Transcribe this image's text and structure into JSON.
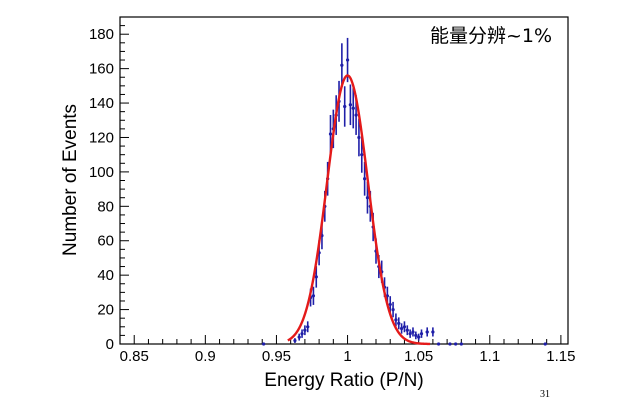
{
  "chart_data": {
    "type": "scatter",
    "title": "",
    "xlabel": "Energy Ratio (P/N)",
    "ylabel": "Number of Events",
    "xlim": [
      0.84,
      1.155
    ],
    "ylim": [
      0,
      190
    ],
    "x_ticks": [
      0.85,
      0.9,
      0.95,
      1,
      1.05,
      1.1,
      1.15
    ],
    "x_tick_labels": [
      "0.85",
      "0.9",
      "0.95",
      "1",
      "1.05",
      "1.1",
      "1.15"
    ],
    "y_ticks": [
      0,
      20,
      40,
      60,
      80,
      100,
      120,
      140,
      160,
      180
    ],
    "y_tick_labels": [
      "0",
      "20",
      "40",
      "60",
      "80",
      "100",
      "120",
      "140",
      "160",
      "180"
    ],
    "grid": false,
    "annotation": "能量分辨~1%",
    "series": [
      {
        "kind": "histogram-with-errors",
        "color": "#1f1fa8",
        "points": [
          {
            "x": 0.941,
            "y": 0
          },
          {
            "x": 0.963,
            "y": 2
          },
          {
            "x": 0.966,
            "y": 4
          },
          {
            "x": 0.968,
            "y": 6
          },
          {
            "x": 0.97,
            "y": 8
          },
          {
            "x": 0.972,
            "y": 10
          },
          {
            "x": 0.974,
            "y": 27
          },
          {
            "x": 0.976,
            "y": 28
          },
          {
            "x": 0.978,
            "y": 39
          },
          {
            "x": 0.98,
            "y": 53
          },
          {
            "x": 0.982,
            "y": 63
          },
          {
            "x": 0.984,
            "y": 80
          },
          {
            "x": 0.986,
            "y": 96
          },
          {
            "x": 0.988,
            "y": 122
          },
          {
            "x": 0.99,
            "y": 125
          },
          {
            "x": 0.992,
            "y": 133
          },
          {
            "x": 0.994,
            "y": 141
          },
          {
            "x": 0.996,
            "y": 162
          },
          {
            "x": 0.998,
            "y": 138
          },
          {
            "x": 1.0,
            "y": 165
          },
          {
            "x": 1.002,
            "y": 139
          },
          {
            "x": 1.004,
            "y": 137
          },
          {
            "x": 1.006,
            "y": 133
          },
          {
            "x": 1.008,
            "y": 120
          },
          {
            "x": 1.01,
            "y": 110
          },
          {
            "x": 1.012,
            "y": 96
          },
          {
            "x": 1.014,
            "y": 85
          },
          {
            "x": 1.016,
            "y": 80
          },
          {
            "x": 1.018,
            "y": 68
          },
          {
            "x": 1.02,
            "y": 54
          },
          {
            "x": 1.022,
            "y": 45
          },
          {
            "x": 1.024,
            "y": 42
          },
          {
            "x": 1.026,
            "y": 33
          },
          {
            "x": 1.028,
            "y": 28
          },
          {
            "x": 1.03,
            "y": 23
          },
          {
            "x": 1.032,
            "y": 20
          },
          {
            "x": 1.034,
            "y": 14
          },
          {
            "x": 1.036,
            "y": 12
          },
          {
            "x": 1.038,
            "y": 9
          },
          {
            "x": 1.04,
            "y": 10
          },
          {
            "x": 1.042,
            "y": 8
          },
          {
            "x": 1.044,
            "y": 6
          },
          {
            "x": 1.046,
            "y": 7
          },
          {
            "x": 1.048,
            "y": 5
          },
          {
            "x": 1.05,
            "y": 4
          },
          {
            "x": 1.052,
            "y": 6
          },
          {
            "x": 1.056,
            "y": 7
          },
          {
            "x": 1.06,
            "y": 7
          },
          {
            "x": 1.064,
            "y": 0
          },
          {
            "x": 1.072,
            "y": 0
          },
          {
            "x": 1.076,
            "y": 0
          },
          {
            "x": 1.08,
            "y": 0
          },
          {
            "x": 1.139,
            "y": 0
          }
        ]
      },
      {
        "kind": "fit-curve",
        "color": "#e41a1a",
        "model": "gaussian",
        "amplitude": 156,
        "mean": 1.0,
        "sigma": 0.0143,
        "x_range": [
          0.958,
          1.058
        ]
      }
    ]
  },
  "footer": {
    "slide_number": "31"
  }
}
